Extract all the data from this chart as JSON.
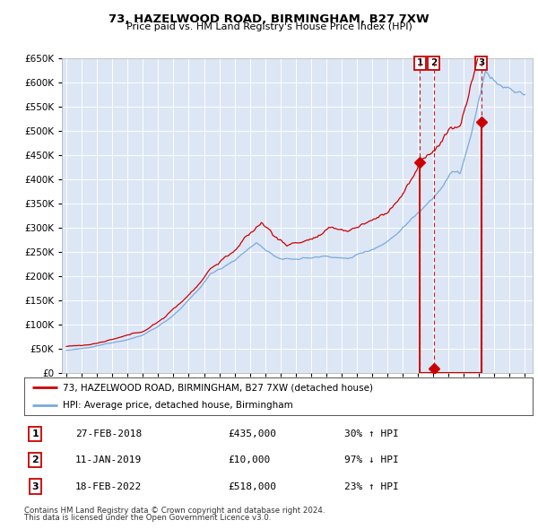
{
  "title": "73, HAZELWOOD ROAD, BIRMINGHAM, B27 7XW",
  "subtitle": "Price paid vs. HM Land Registry's House Price Index (HPI)",
  "legend_line1": "73, HAZELWOOD ROAD, BIRMINGHAM, B27 7XW (detached house)",
  "legend_line2": "HPI: Average price, detached house, Birmingham",
  "footer1": "Contains HM Land Registry data © Crown copyright and database right 2024.",
  "footer2": "This data is licensed under the Open Government Licence v3.0.",
  "transactions": [
    {
      "num": 1,
      "date": "27-FEB-2018",
      "price": 435000,
      "pct": "30%",
      "dir": "↑",
      "x": 2018.13
    },
    {
      "num": 2,
      "date": "11-JAN-2019",
      "price": 10000,
      "pct": "97%",
      "dir": "↓",
      "x": 2019.03
    },
    {
      "num": 3,
      "date": "18-FEB-2022",
      "price": 518000,
      "pct": "23%",
      "dir": "↑",
      "x": 2022.13
    }
  ],
  "hpi_color": "#7aaadd",
  "price_color": "#cc0000",
  "vline_color": "#cc0000",
  "background_plot": "#dce6f5",
  "background_fig": "#ffffff",
  "grid_color": "#ffffff",
  "ylim": [
    0,
    650000
  ],
  "xlim_start": 1994.7,
  "xlim_end": 2025.5,
  "yticks": [
    0,
    50000,
    100000,
    150000,
    200000,
    250000,
    300000,
    350000,
    400000,
    450000,
    500000,
    550000,
    600000,
    650000
  ],
  "xticks": [
    1995,
    1996,
    1997,
    1998,
    1999,
    2000,
    2001,
    2002,
    2003,
    2004,
    2005,
    2006,
    2007,
    2008,
    2009,
    2010,
    2011,
    2012,
    2013,
    2014,
    2015,
    2016,
    2017,
    2018,
    2019,
    2020,
    2021,
    2022,
    2023,
    2024,
    2025
  ]
}
